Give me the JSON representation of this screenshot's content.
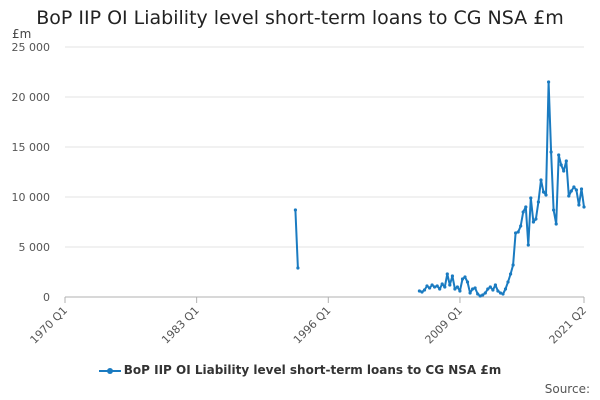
{
  "title": "BoP IIP OI Liability level short-term loans to CG NSA £m",
  "unit_label": "£m",
  "source_label": "Source:",
  "legend_label": "BoP IIP OI Liability level short-term loans to CG NSA £m",
  "series_color": "#1a7bc1",
  "chart_data": {
    "type": "line",
    "title": "BoP IIP OI Liability level short-term loans to CG NSA £m",
    "ylabel": "£m",
    "ylim": [
      0,
      25000
    ],
    "yticks": [
      0,
      5000,
      10000,
      15000,
      20000,
      25000
    ],
    "ytick_labels": [
      "0",
      "5 000",
      "10 000",
      "15 000",
      "20 000",
      "25 000"
    ],
    "xlim": [
      "1970 Q1",
      "2021 Q2"
    ],
    "xticks": [
      "1970 Q1",
      "1983 Q1",
      "1996 Q1",
      "2009 Q1",
      "2021 Q2"
    ],
    "grid": "horizontal",
    "legend_position": "bottom",
    "series": [
      {
        "name": "BoP IIP OI Liability level short-term loans to CG NSA £m",
        "segments": [
          {
            "x": [
              "1992 Q4",
              "1993 Q1"
            ],
            "y": [
              8700,
              2900
            ]
          },
          {
            "x": [
              "2005 Q1",
              "2005 Q2",
              "2005 Q3",
              "2005 Q4",
              "2006 Q1",
              "2006 Q2",
              "2006 Q3",
              "2006 Q4",
              "2007 Q1",
              "2007 Q2",
              "2007 Q3",
              "2007 Q4",
              "2008 Q1",
              "2008 Q2",
              "2008 Q3",
              "2008 Q4",
              "2009 Q1",
              "2009 Q2",
              "2009 Q3",
              "2009 Q4",
              "2010 Q1",
              "2010 Q2",
              "2010 Q3",
              "2010 Q4",
              "2011 Q1",
              "2011 Q2",
              "2011 Q3",
              "2011 Q4",
              "2012 Q1",
              "2012 Q2",
              "2012 Q3",
              "2012 Q4",
              "2013 Q1",
              "2013 Q2",
              "2013 Q3",
              "2013 Q4",
              "2014 Q1",
              "2014 Q2",
              "2014 Q3",
              "2014 Q4",
              "2015 Q1",
              "2015 Q2",
              "2015 Q3",
              "2015 Q4",
              "2016 Q1",
              "2016 Q2",
              "2016 Q3",
              "2016 Q4",
              "2017 Q1",
              "2017 Q2",
              "2017 Q3",
              "2017 Q4",
              "2018 Q1",
              "2018 Q2",
              "2018 Q3",
              "2018 Q4",
              "2019 Q1",
              "2019 Q2",
              "2019 Q3",
              "2019 Q4",
              "2020 Q1",
              "2020 Q2",
              "2020 Q3",
              "2020 Q4",
              "2021 Q1",
              "2021 Q2"
            ],
            "y": [
              600,
              500,
              700,
              1100,
              900,
              1200,
              1000,
              1100,
              800,
              1300,
              1000,
              2300,
              1200,
              2100,
              800,
              1000,
              600,
              1800,
              2000,
              1500,
              400,
              800,
              900,
              300,
              100,
              200,
              400,
              800,
              1000,
              700,
              1200,
              600,
              400,
              300,
              800,
              1500,
              2300,
              3200,
              6400,
              6500,
              7100,
              8500,
              9000,
              5200,
              9900,
              7500,
              7800,
              9500,
              11700,
              10500,
              10200,
              21500,
              14500,
              8700,
              7300,
              14200,
              13200,
              12600,
              13600,
              10100,
              10600,
              11000,
              10700,
              9200,
              10800,
              9000
            ]
          }
        ]
      }
    ]
  }
}
